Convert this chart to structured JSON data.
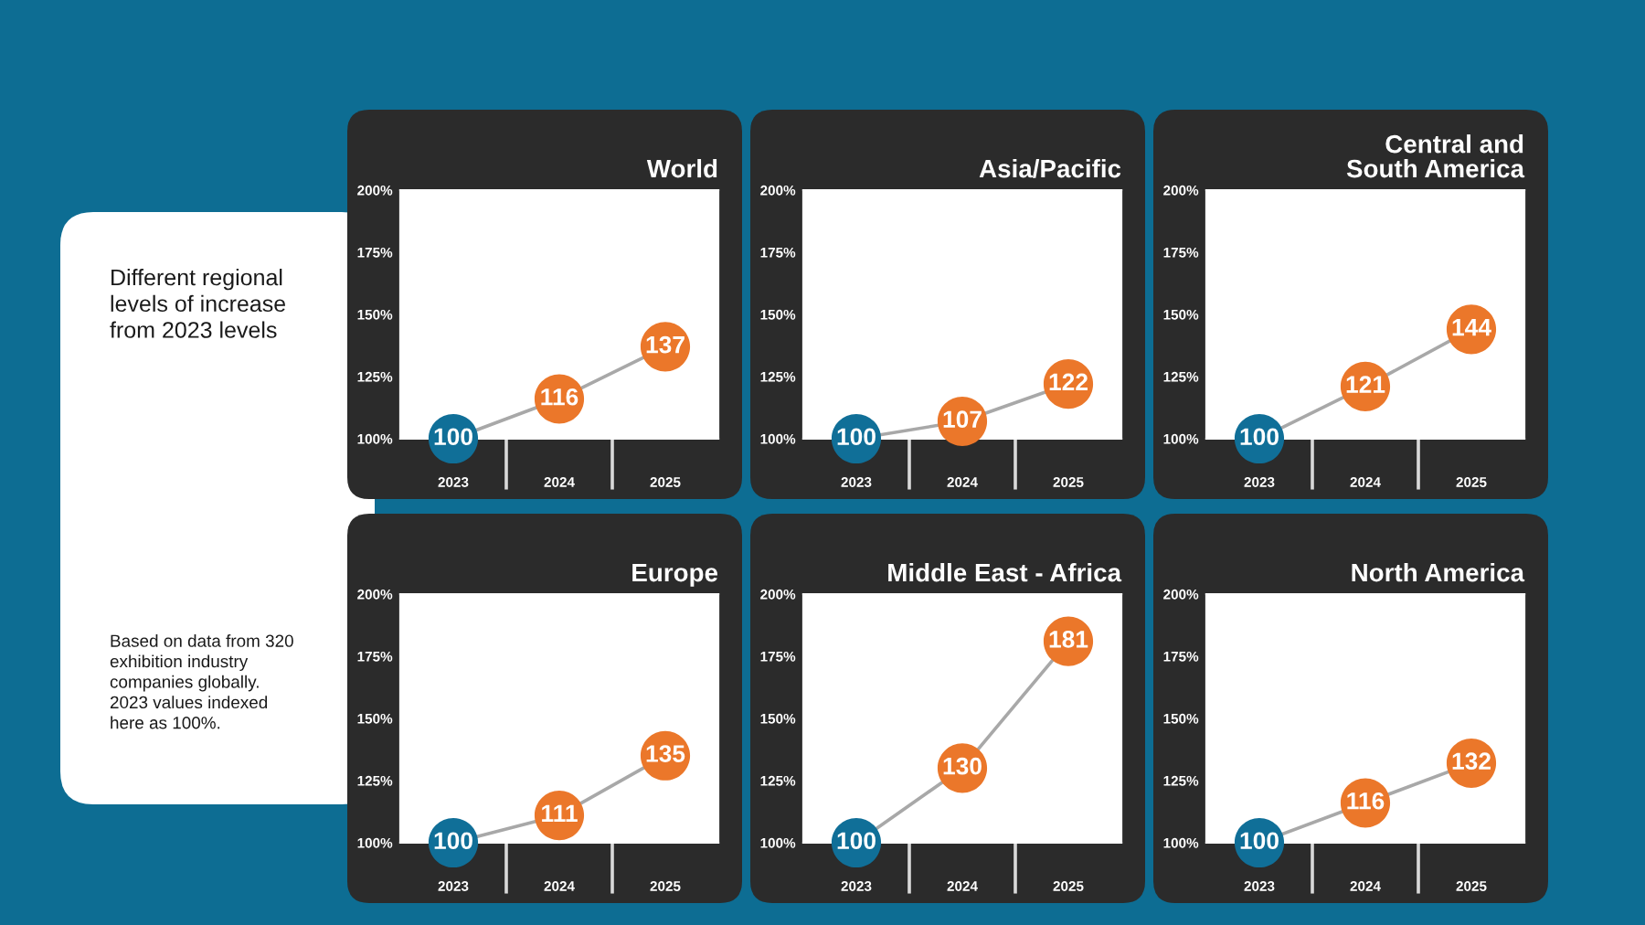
{
  "chart_data": [
    {
      "type": "other",
      "title": "Different regional\nlevels of increase\nfrom 2023 levels",
      "annotations": [
        "Based on data from 320\nexhibition industry\ncompanies globally.\n2023 values indexed\nhere as 100%."
      ]
    },
    {
      "type": "line",
      "title": "World",
      "categories": [
        "2023",
        "2024",
        "2025"
      ],
      "values": [
        100,
        116,
        137
      ],
      "color": "#a8a8a8",
      "colors": [
        "#106f98",
        "#eb772a",
        "#eb772a"
      ],
      "marker": "circle",
      "data_labels": true,
      "ylim": [
        100,
        200
      ],
      "yticks": [
        {
          "value": 100,
          "label": "100%"
        },
        {
          "value": 125,
          "label": "125%"
        },
        {
          "value": 150,
          "label": "150%"
        },
        {
          "value": 175,
          "label": "175%"
        },
        {
          "value": 200,
          "label": "200%"
        }
      ]
    },
    {
      "type": "line",
      "title": "Asia/Pacific",
      "categories": [
        "2023",
        "2024",
        "2025"
      ],
      "values": [
        100,
        107,
        122
      ],
      "color": "#a8a8a8",
      "colors": [
        "#106f98",
        "#eb772a",
        "#eb772a"
      ],
      "marker": "circle",
      "data_labels": true,
      "ylim": [
        100,
        200
      ],
      "yticks": [
        {
          "value": 100,
          "label": "100%"
        },
        {
          "value": 125,
          "label": "125%"
        },
        {
          "value": 150,
          "label": "150%"
        },
        {
          "value": 175,
          "label": "175%"
        },
        {
          "value": 200,
          "label": "200%"
        }
      ]
    },
    {
      "type": "line",
      "title": "Central and\nSouth America",
      "categories": [
        "2023",
        "2024",
        "2025"
      ],
      "values": [
        100,
        121,
        144
      ],
      "color": "#a8a8a8",
      "colors": [
        "#106f98",
        "#eb772a",
        "#eb772a"
      ],
      "marker": "circle",
      "data_labels": true,
      "ylim": [
        100,
        200
      ],
      "yticks": [
        {
          "value": 100,
          "label": "100%"
        },
        {
          "value": 125,
          "label": "125%"
        },
        {
          "value": 150,
          "label": "150%"
        },
        {
          "value": 175,
          "label": "175%"
        },
        {
          "value": 200,
          "label": "200%"
        }
      ]
    },
    {
      "type": "line",
      "title": "Europe",
      "categories": [
        "2023",
        "2024",
        "2025"
      ],
      "values": [
        100,
        111,
        135
      ],
      "color": "#a8a8a8",
      "colors": [
        "#106f98",
        "#eb772a",
        "#eb772a"
      ],
      "marker": "circle",
      "data_labels": true,
      "ylim": [
        100,
        200
      ],
      "yticks": [
        {
          "value": 100,
          "label": "100%"
        },
        {
          "value": 125,
          "label": "125%"
        },
        {
          "value": 150,
          "label": "150%"
        },
        {
          "value": 175,
          "label": "175%"
        },
        {
          "value": 200,
          "label": "200%"
        }
      ]
    },
    {
      "type": "line",
      "title": "Middle East - Africa",
      "categories": [
        "2023",
        "2024",
        "2025"
      ],
      "values": [
        100,
        130,
        181
      ],
      "color": "#a8a8a8",
      "colors": [
        "#106f98",
        "#eb772a",
        "#eb772a"
      ],
      "marker": "circle",
      "data_labels": true,
      "ylim": [
        100,
        200
      ],
      "yticks": [
        {
          "value": 100,
          "label": "100%"
        },
        {
          "value": 125,
          "label": "125%"
        },
        {
          "value": 150,
          "label": "150%"
        },
        {
          "value": 175,
          "label": "175%"
        },
        {
          "value": 200,
          "label": "200%"
        }
      ]
    },
    {
      "type": "line",
      "title": "North America",
      "categories": [
        "2023",
        "2024",
        "2025"
      ],
      "values": [
        100,
        116,
        132
      ],
      "color": "#a8a8a8",
      "colors": [
        "#106f98",
        "#eb772a",
        "#eb772a"
      ],
      "marker": "circle",
      "data_labels": true,
      "ylim": [
        100,
        200
      ],
      "yticks": [
        {
          "value": 100,
          "label": "100%"
        },
        {
          "value": 125,
          "label": "125%"
        },
        {
          "value": 150,
          "label": "150%"
        },
        {
          "value": 175,
          "label": "175%"
        },
        {
          "value": 200,
          "label": "200%"
        }
      ]
    }
  ]
}
